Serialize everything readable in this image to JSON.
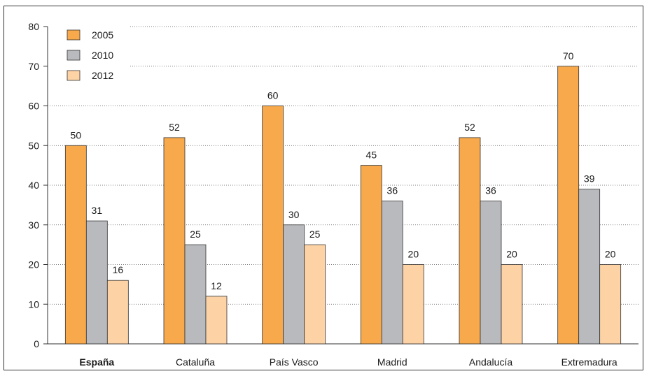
{
  "chart_data": {
    "type": "bar",
    "title": "",
    "xlabel": "",
    "ylabel": "",
    "ylim": [
      0,
      80
    ],
    "yticks": [
      0,
      10,
      20,
      30,
      40,
      50,
      60,
      70,
      80
    ],
    "grid": true,
    "legend_position": "top-left",
    "categories": [
      "España",
      "Cataluña",
      "País Vasco",
      "Madrid",
      "Andalucía",
      "Extremadura"
    ],
    "bold_categories": [
      "España"
    ],
    "series": [
      {
        "name": "2005",
        "color": "#f8a94b",
        "values": [
          50,
          52,
          60,
          45,
          52,
          70
        ]
      },
      {
        "name": "2010",
        "color": "#b9babe",
        "values": [
          31,
          25,
          30,
          36,
          36,
          39
        ]
      },
      {
        "name": "2012",
        "color": "#fdd3a6",
        "values": [
          16,
          12,
          25,
          20,
          20,
          20
        ]
      }
    ]
  }
}
